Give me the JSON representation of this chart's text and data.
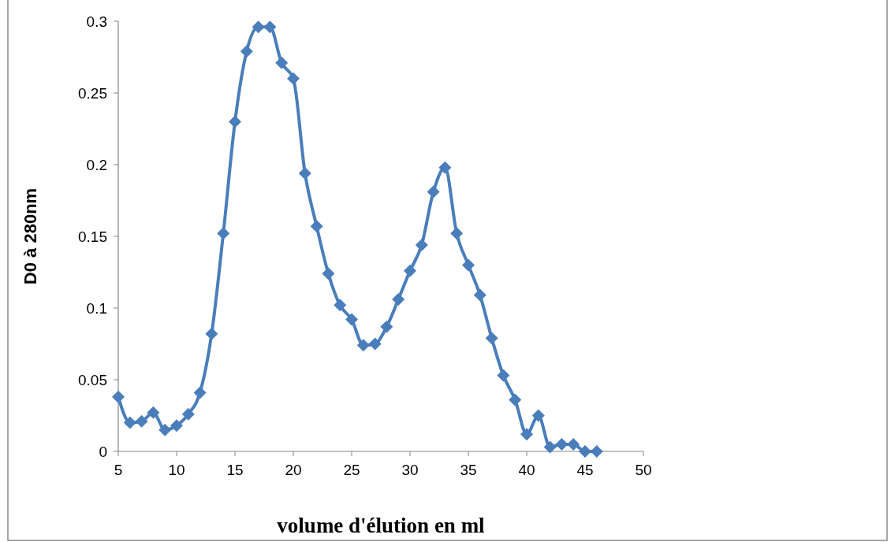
{
  "chart_data": {
    "type": "line",
    "xlabel": "volume d'élution en ml",
    "ylabel": "D0 à 280nm",
    "x": [
      5,
      6,
      7,
      8,
      9,
      10,
      11,
      12,
      13,
      14,
      15,
      16,
      17,
      18,
      19,
      20,
      21,
      22,
      23,
      24,
      25,
      26,
      27,
      28,
      29,
      30,
      31,
      32,
      33,
      34,
      35,
      36,
      37,
      38,
      39,
      40,
      41,
      42,
      43,
      44,
      45,
      46
    ],
    "series": [
      {
        "color": "#4a7ebb",
        "values": [
          0.038,
          0.02,
          0.021,
          0.027,
          0.015,
          0.018,
          0.026,
          0.041,
          0.082,
          0.152,
          0.23,
          0.279,
          0.296,
          0.296,
          0.271,
          0.26,
          0.194,
          0.157,
          0.124,
          0.102,
          0.092,
          0.074,
          0.075,
          0.087,
          0.106,
          0.126,
          0.144,
          0.181,
          0.198,
          0.152,
          0.13,
          0.109,
          0.079,
          0.053,
          0.036,
          0.012,
          0.025,
          0.003,
          0.005,
          0.005,
          0,
          0
        ]
      }
    ],
    "xlim": [
      5,
      50
    ],
    "xticks": [
      5,
      10,
      15,
      20,
      25,
      30,
      35,
      40,
      45,
      50
    ],
    "ylim": [
      0,
      0.3
    ],
    "yticks": [
      0,
      0.05,
      0.1,
      0.15,
      0.2,
      0.25,
      0.3
    ],
    "grid": false,
    "marker": "diamond",
    "line_style": "solid"
  }
}
